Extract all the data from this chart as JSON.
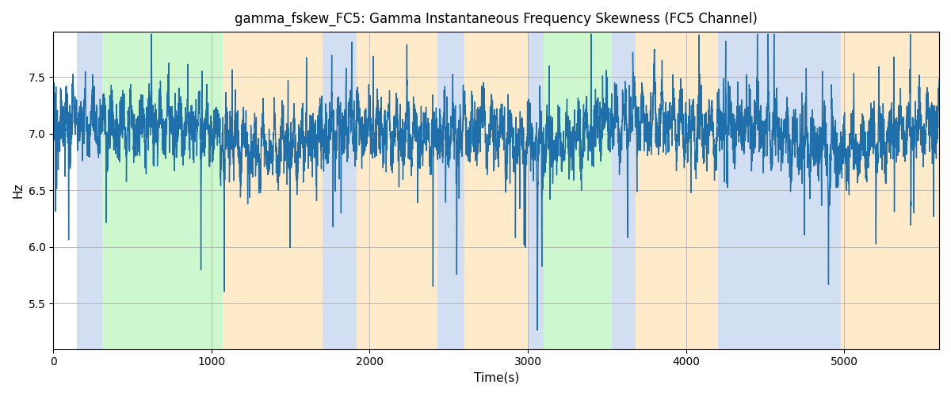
{
  "title": "gamma_fskew_FC5: Gamma Instantaneous Frequency Skewness (FC5 Channel)",
  "xlabel": "Time(s)",
  "ylabel": "Hz",
  "xlim": [
    0,
    5600
  ],
  "ylim": [
    5.1,
    7.9
  ],
  "line_color": "#1f6fab",
  "line_width": 1.0,
  "bg_color": "#ffffff",
  "grid_color": "#b0b0b0",
  "colored_regions": [
    {
      "xmin": 150,
      "xmax": 310,
      "color": "#AEC6E8",
      "alpha": 0.55
    },
    {
      "xmin": 310,
      "xmax": 1070,
      "color": "#90EE90",
      "alpha": 0.45
    },
    {
      "xmin": 1070,
      "xmax": 1700,
      "color": "#FFDAA0",
      "alpha": 0.55
    },
    {
      "xmin": 1700,
      "xmax": 1920,
      "color": "#AEC6E8",
      "alpha": 0.55
    },
    {
      "xmin": 1920,
      "xmax": 2430,
      "color": "#FFDAA0",
      "alpha": 0.55
    },
    {
      "xmin": 2430,
      "xmax": 2600,
      "color": "#AEC6E8",
      "alpha": 0.55
    },
    {
      "xmin": 2600,
      "xmax": 3000,
      "color": "#FFDAA0",
      "alpha": 0.55
    },
    {
      "xmin": 3000,
      "xmax": 3100,
      "color": "#AEC6E8",
      "alpha": 0.55
    },
    {
      "xmin": 3100,
      "xmax": 3530,
      "color": "#90EE90",
      "alpha": 0.45
    },
    {
      "xmin": 3530,
      "xmax": 3680,
      "color": "#AEC6E8",
      "alpha": 0.55
    },
    {
      "xmin": 3680,
      "xmax": 4200,
      "color": "#FFDAA0",
      "alpha": 0.55
    },
    {
      "xmin": 4200,
      "xmax": 4330,
      "color": "#AEC6E8",
      "alpha": 0.55
    },
    {
      "xmin": 4330,
      "xmax": 4980,
      "color": "#AEC6E8",
      "alpha": 0.55
    },
    {
      "xmin": 4980,
      "xmax": 5170,
      "color": "#FFDAA0",
      "alpha": 0.55
    },
    {
      "xmin": 5170,
      "xmax": 5600,
      "color": "#FFDAA0",
      "alpha": 0.55
    }
  ],
  "xticks": [
    0,
    1000,
    2000,
    3000,
    4000,
    5000
  ],
  "yticks": [
    5.5,
    6.0,
    6.5,
    7.0,
    7.5
  ],
  "seed": 123,
  "n_points": 5600
}
